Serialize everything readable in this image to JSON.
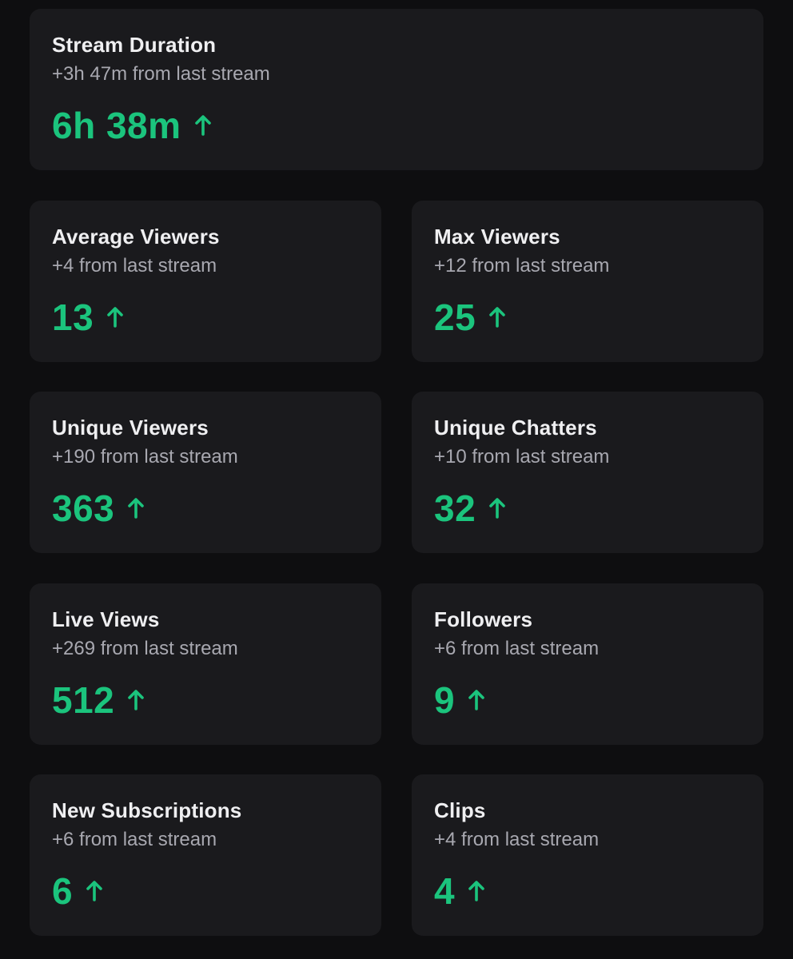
{
  "colors": {
    "background": "#0e0e10",
    "card": "#1a1a1d",
    "title": "#efeff1",
    "subtitle": "#a8a8b0",
    "positive": "#1bc47d"
  },
  "stats": {
    "stream_duration": {
      "title": "Stream Duration",
      "delta": "+3h 47m from last stream",
      "value": "6h 38m",
      "trend_icon": "arrow-up-icon"
    },
    "average_viewers": {
      "title": "Average Viewers",
      "delta": "+4 from last stream",
      "value": "13",
      "trend_icon": "arrow-up-icon"
    },
    "max_viewers": {
      "title": "Max Viewers",
      "delta": "+12 from last stream",
      "value": "25",
      "trend_icon": "arrow-up-icon"
    },
    "unique_viewers": {
      "title": "Unique Viewers",
      "delta": "+190 from last stream",
      "value": "363",
      "trend_icon": "arrow-up-icon"
    },
    "unique_chatters": {
      "title": "Unique Chatters",
      "delta": "+10 from last stream",
      "value": "32",
      "trend_icon": "arrow-up-icon"
    },
    "live_views": {
      "title": "Live Views",
      "delta": "+269 from last stream",
      "value": "512",
      "trend_icon": "arrow-up-icon"
    },
    "followers": {
      "title": "Followers",
      "delta": "+6 from last stream",
      "value": "9",
      "trend_icon": "arrow-up-icon"
    },
    "new_subscriptions": {
      "title": "New Subscriptions",
      "delta": "+6 from last stream",
      "value": "6",
      "trend_icon": "arrow-up-icon"
    },
    "clips": {
      "title": "Clips",
      "delta": "+4 from last stream",
      "value": "4",
      "trend_icon": "arrow-up-icon"
    }
  }
}
